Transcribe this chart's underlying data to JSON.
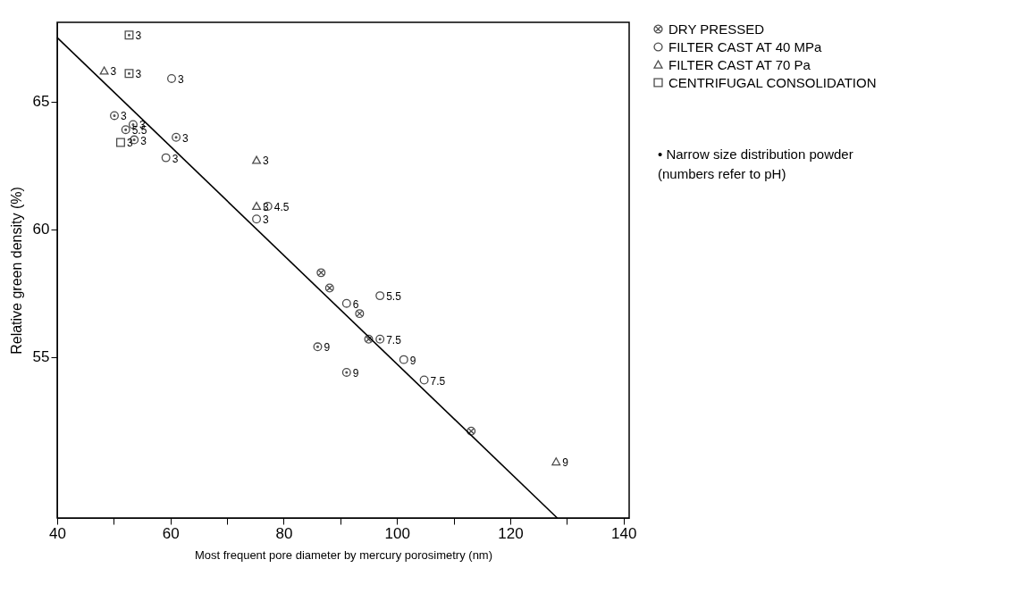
{
  "chart_data": {
    "type": "scatter",
    "xlabel": "Most frequent pore diameter by mercury porosimetry (nm)",
    "ylabel": "Relative green density (%)",
    "xlim": [
      40,
      141
    ],
    "ylim": [
      48.7,
      68.1
    ],
    "xticks": [
      40,
      {
        "value": 50,
        "label": null
      },
      60,
      {
        "value": 70,
        "label": null
      },
      80,
      {
        "value": 90,
        "label": null
      },
      100,
      {
        "value": 110,
        "label": null
      },
      120,
      {
        "value": 130,
        "label": null
      },
      140
    ],
    "yticks": [
      55,
      60,
      65
    ],
    "grid": false,
    "legend": "right",
    "annotations": [
      "• Narrow size distribution powder",
      "(numbers refer to pH)",
      {
        "text": "3",
        "x": 60.2,
        "y": 65.9
      },
      {
        "text": "3",
        "x": 59.2,
        "y": 62.8
      },
      {
        "text": "3",
        "x": 75.2,
        "y": 60.4
      },
      {
        "text": "4.5",
        "x": 77.2,
        "y": 60.9
      },
      {
        "text": "6",
        "x": 91.1,
        "y": 57.1
      },
      {
        "text": "5.5",
        "x": 97.0,
        "y": 57.4
      },
      {
        "text": "9",
        "x": 101.2,
        "y": 54.9
      },
      {
        "text": "7.5",
        "x": 104.8,
        "y": 54.1
      },
      {
        "text": "3",
        "x": 50.1,
        "y": 64.45
      },
      {
        "text": "3",
        "x": 53.4,
        "y": 64.1
      },
      {
        "text": "5.5",
        "x": 52.1,
        "y": 63.9
      },
      {
        "text": "3",
        "x": 53.6,
        "y": 63.5
      },
      {
        "text": "3",
        "x": 61.0,
        "y": 63.6
      },
      {
        "text": "9",
        "x": 86.0,
        "y": 55.4
      },
      {
        "text": "9",
        "x": 91.1,
        "y": 54.4
      },
      {
        "text": "7.5",
        "x": 97.0,
        "y": 55.7
      },
      {
        "text": "3",
        "x": 48.3,
        "y": 66.2
      },
      {
        "text": "3",
        "x": 75.2,
        "y": 62.7
      },
      {
        "text": "3",
        "x": 75.2,
        "y": 60.9
      },
      {
        "text": "9",
        "x": 128.1,
        "y": 50.9
      },
      {
        "text": "3",
        "x": 51.2,
        "y": 63.4
      },
      {
        "text": "3",
        "x": 52.7,
        "y": 67.6
      },
      {
        "text": "3",
        "x": 52.7,
        "y": 66.1
      }
    ],
    "series": [
      {
        "name": "DRY PRESSED",
        "color": "#000000",
        "marker": "cross",
        "x": [
          86.6,
          88.1,
          93.4,
          95.0,
          113.1
        ],
        "values": [
          58.3,
          57.7,
          56.7,
          55.7,
          52.1
        ]
      },
      {
        "name": "FILTER CAST AT 40 MPa",
        "color": "#000000",
        "marker": "circle",
        "x": [
          60.2,
          59.2,
          75.2,
          77.2,
          91.1,
          97.0,
          101.2,
          104.8
        ],
        "values": [
          65.9,
          62.8,
          60.4,
          60.9,
          57.1,
          57.4,
          54.9,
          54.1
        ]
      },
      {
        "color": "#000000",
        "marker": "circle-dot",
        "x": [
          50.1,
          53.4,
          52.1,
          53.6,
          61.0,
          86.0,
          91.1,
          97.0
        ],
        "values": [
          64.45,
          64.1,
          63.9,
          63.5,
          63.6,
          55.4,
          54.4,
          55.7
        ]
      },
      {
        "name": "FILTER CAST AT 70 Pa",
        "color": "#000000",
        "marker": "triangle",
        "x": [
          48.3,
          75.2,
          75.2,
          128.1
        ],
        "values": [
          66.2,
          62.7,
          60.9,
          50.9
        ]
      },
      {
        "name": "CENTRIFUGAL CONSOLIDATION",
        "color": "#000000",
        "marker": "square",
        "x": [
          51.2
        ],
        "values": [
          63.4
        ]
      },
      {
        "color": "#000000",
        "marker": "square-dot",
        "x": [
          52.7,
          52.7
        ],
        "values": [
          67.6,
          66.1
        ]
      },
      {
        "type": "line",
        "color": "#000000",
        "marker": "none",
        "x": [
          40,
          128.3
        ],
        "values": [
          67.5,
          48.7
        ]
      }
    ]
  }
}
